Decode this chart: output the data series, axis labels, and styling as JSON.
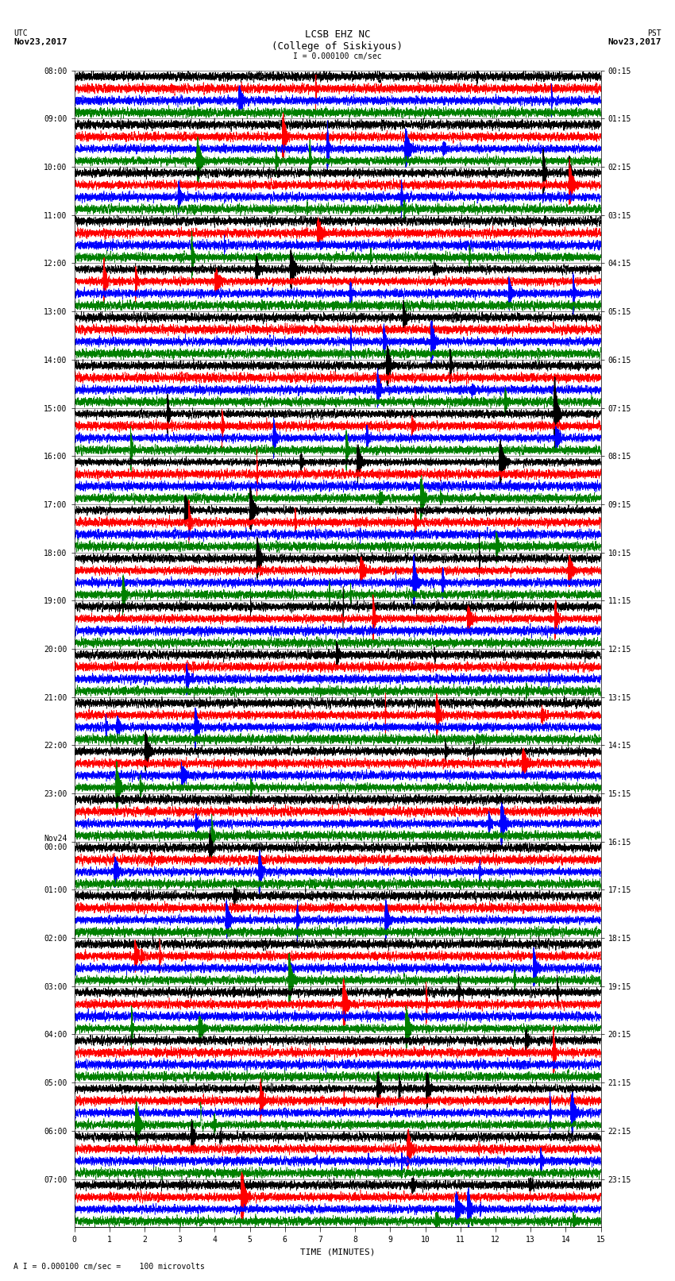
{
  "title_line1": "LCSB EHZ NC",
  "title_line2": "(College of Siskiyous)",
  "scale_text": "I = 0.000100 cm/sec",
  "footer_text": "A I = 0.000100 cm/sec =    100 microvolts",
  "utc_label": "UTC",
  "utc_date": "Nov23,2017",
  "pst_label": "PST",
  "pst_date": "Nov23,2017",
  "xlabel": "TIME (MINUTES)",
  "left_times": [
    "08:00",
    "09:00",
    "10:00",
    "11:00",
    "12:00",
    "13:00",
    "14:00",
    "15:00",
    "16:00",
    "17:00",
    "18:00",
    "19:00",
    "20:00",
    "21:00",
    "22:00",
    "23:00",
    "Nov24\n00:00",
    "01:00",
    "02:00",
    "03:00",
    "04:00",
    "05:00",
    "06:00",
    "07:00"
  ],
  "right_times": [
    "00:15",
    "01:15",
    "02:15",
    "03:15",
    "04:15",
    "05:15",
    "06:15",
    "07:15",
    "08:15",
    "09:15",
    "10:15",
    "11:15",
    "12:15",
    "13:15",
    "14:15",
    "15:15",
    "16:15",
    "17:15",
    "18:15",
    "19:15",
    "20:15",
    "21:15",
    "22:15",
    "23:15"
  ],
  "trace_colors": [
    "black",
    "red",
    "blue",
    "green"
  ],
  "n_rows": 24,
  "traces_per_row": 4,
  "duration_minutes": 15,
  "sample_rate": 100,
  "bg_color": "white",
  "amplitude_scale": 0.35,
  "linewidth": 0.4
}
